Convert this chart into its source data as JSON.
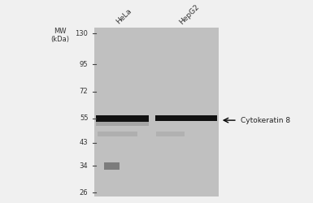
{
  "background_color": "#f0f0f0",
  "gel_bg_color": "#c0c0c0",
  "fig_width": 3.85,
  "fig_height": 2.5,
  "dpi": 100,
  "mw_markers": [
    130,
    95,
    72,
    55,
    43,
    34,
    26
  ],
  "lane_labels": [
    "HeLa",
    "HepG2"
  ],
  "band_label": "Cytokeratin 8",
  "mw_header": "MW\n(kDa)"
}
